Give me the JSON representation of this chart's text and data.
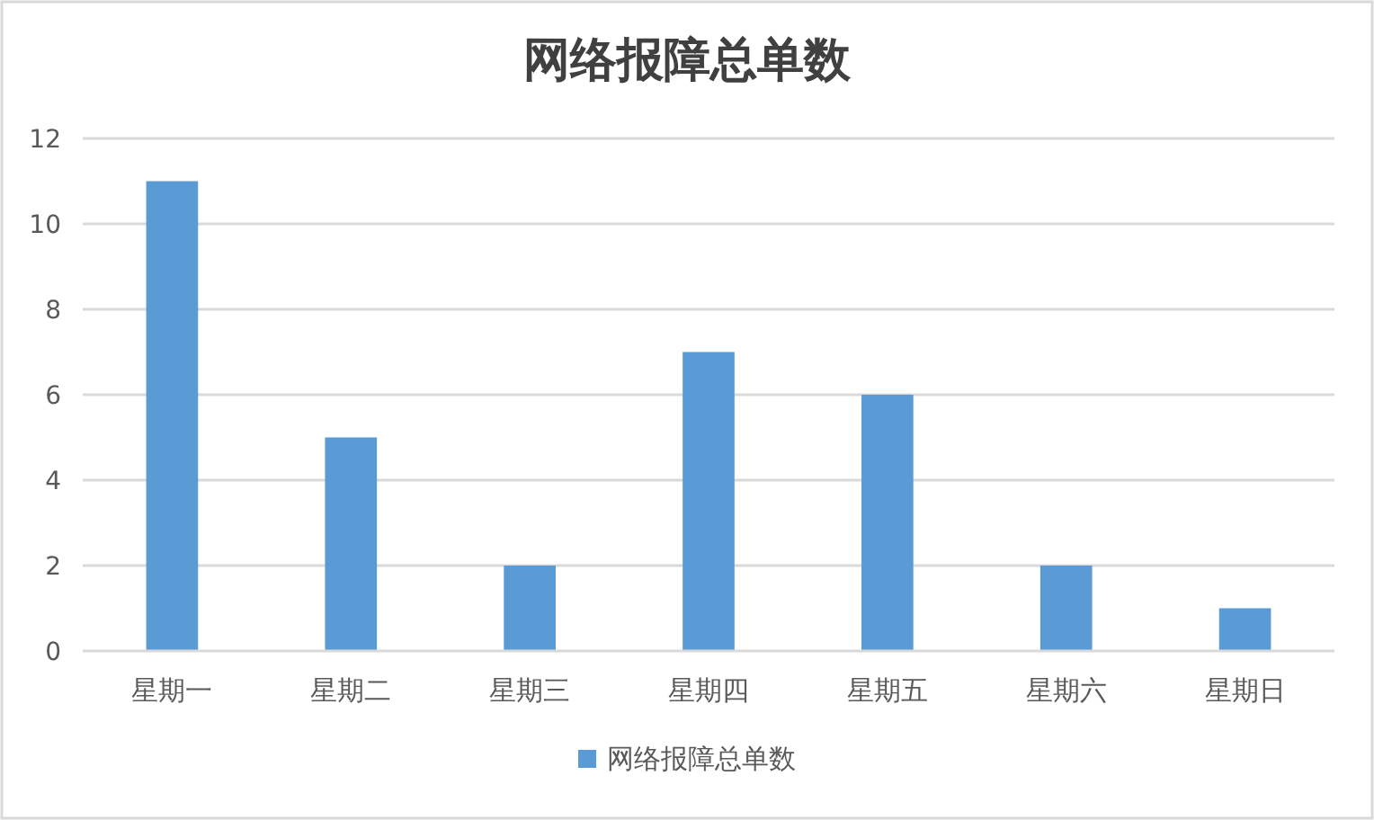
{
  "chart_data": {
    "type": "bar",
    "title": "网络报障总单数",
    "categories": [
      "星期一",
      "星期二",
      "星期三",
      "星期四",
      "星期五",
      "星期六",
      "星期日"
    ],
    "series": [
      {
        "name": "网络报障总单数",
        "color": "#5b9bd5",
        "values": [
          11,
          5,
          2,
          7,
          6,
          2,
          1
        ]
      }
    ],
    "ylim": [
      0,
      12
    ],
    "yticks": [
      0,
      2,
      4,
      6,
      8,
      10,
      12
    ],
    "grid": "y",
    "legend": "bottom"
  }
}
